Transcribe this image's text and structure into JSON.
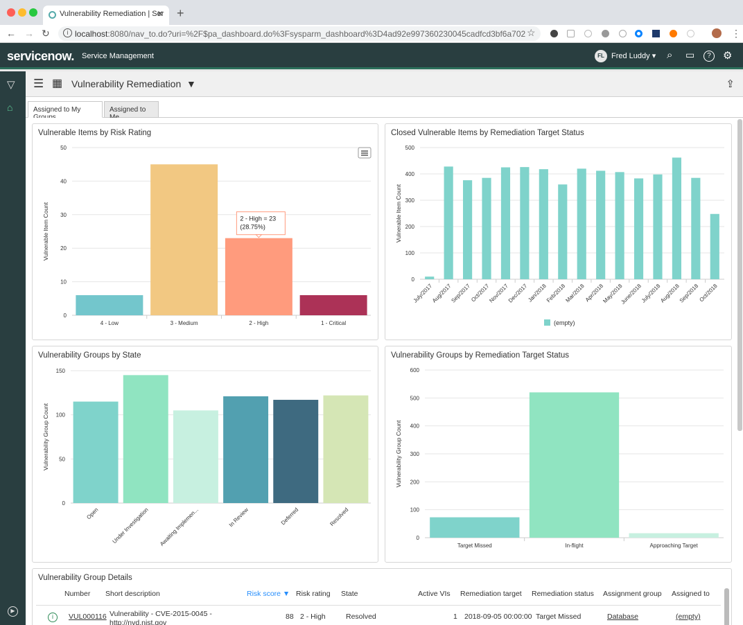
{
  "browser": {
    "tab_title": "Vulnerability Remediation | Ser",
    "url_host": "localhost",
    "url_rest": ":8080/nav_to.do?uri=%2F$pa_dashboard.do%3Fsysparm_dashboard%3D4ad92e997360230045cadfcd3bf6a702"
  },
  "header": {
    "logo": "servicenow.",
    "subtitle": "Service Management",
    "user_initials": "FL",
    "user_name": "Fred Luddy"
  },
  "dashboard": {
    "title": "Vulnerability Remediation",
    "tabs": [
      "Assigned to My Groups",
      "Assigned to Me"
    ]
  },
  "colors": {
    "nav": "#293e40",
    "teal": "#7fd3cb",
    "low": "#73c6cc",
    "medium": "#f2c882",
    "high": "#ff9b7d",
    "critical": "#ac3257"
  },
  "chart_data": [
    {
      "type": "bar",
      "title": "Vulnerable Items by Risk Rating",
      "ylabel": "Vulnerable Item Count",
      "ylim": [
        0,
        50
      ],
      "yticks": [
        0,
        10,
        20,
        30,
        40,
        50
      ],
      "categories": [
        "4 - Low",
        "3 - Medium",
        "2 - High",
        "1 - Critical"
      ],
      "values": [
        6,
        45,
        23,
        6
      ],
      "colors": [
        "#73c6cc",
        "#f2c882",
        "#ff9b7d",
        "#ac3257"
      ],
      "tooltip": [
        "2 - High = 23",
        "(28.75%)"
      ]
    },
    {
      "type": "bar",
      "title": "Closed Vulnerable Items by Remediation Target Status",
      "ylabel": "Vulnerable Item Count",
      "ylim": [
        0,
        500
      ],
      "yticks": [
        0,
        100,
        200,
        300,
        400,
        500
      ],
      "categories": [
        "July/2017",
        "Aug/2017",
        "Sep/2017",
        "Oct/2017",
        "Nov/2017",
        "Dec/2017",
        "Jan/2018",
        "Feb/2018",
        "Mar/2018",
        "Apr/2018",
        "May/2018",
        "June/2018",
        "July/2018",
        "Aug/2018",
        "Sep/2018",
        "Oct/2018"
      ],
      "values": [
        10,
        428,
        376,
        385,
        425,
        426,
        418,
        360,
        420,
        412,
        407,
        383,
        398,
        462,
        385,
        248
      ],
      "legend": "(empty)"
    },
    {
      "type": "bar",
      "title": "Vulnerability Groups by State",
      "ylabel": "Vulnerability Group Count",
      "ylim": [
        0,
        150
      ],
      "yticks": [
        0,
        50,
        100,
        150
      ],
      "categories": [
        "Open",
        "Under Investigation",
        "Awaiting Implemen...",
        "In Review",
        "Deferred",
        "Resolved"
      ],
      "values": [
        115,
        145,
        105,
        121,
        117,
        122
      ],
      "colors": [
        "#7fd3cb",
        "#90e4c1",
        "#c7f0e0",
        "#52a0b0",
        "#3e6a80",
        "#d5e6b5"
      ]
    },
    {
      "type": "bar",
      "title": "Vulnerability Groups by Remediation Target Status",
      "ylabel": "Vulnerability Group Count",
      "ylim": [
        0,
        600
      ],
      "yticks": [
        0,
        100,
        200,
        300,
        400,
        500,
        600
      ],
      "categories": [
        "Target Missed",
        "In-flight",
        "Approaching Target"
      ],
      "values": [
        73,
        520,
        16
      ],
      "colors": [
        "#7fd3cb",
        "#90e4c1",
        "#c7f0e0"
      ]
    }
  ],
  "table": {
    "title": "Vulnerability Group Details",
    "headers": [
      "Number",
      "Short description",
      "Risk score ▼",
      "Risk rating",
      "State",
      "Active VIs",
      "Remediation target",
      "Remediation status",
      "Assignment group",
      "Assigned to"
    ],
    "row": {
      "number": "VUL000116",
      "desc1": "Vulnerability - CVE-2015-0045 -",
      "desc2": "http://nvd.nist.gov",
      "score": "88",
      "rating": "2 - High",
      "state": "Resolved",
      "active": "1",
      "target": "2018-09-05 00:00:00",
      "status": "Target Missed",
      "group": "Database",
      "assigned": "(empty)"
    }
  }
}
